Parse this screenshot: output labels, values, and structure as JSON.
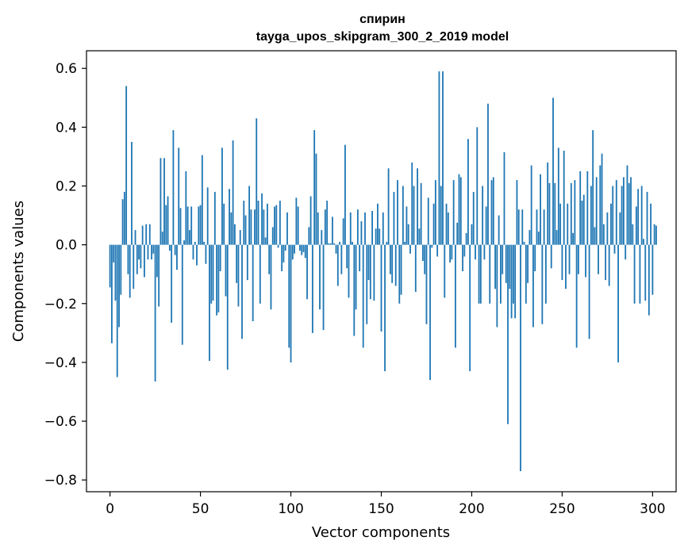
{
  "chart_data": {
    "type": "bar",
    "title": "спирин",
    "subtitle": "tayga_upos_skipgram_300_2_2019 model",
    "xlabel": "Vector components",
    "ylabel": "Components values",
    "xlim": [
      -13,
      313
    ],
    "ylim": [
      -0.84,
      0.66
    ],
    "xticks": [
      0,
      50,
      100,
      150,
      200,
      250,
      300
    ],
    "xtick_labels": [
      "0",
      "50",
      "100",
      "150",
      "200",
      "250",
      "300"
    ],
    "yticks": [
      0.6,
      0.4,
      0.2,
      0.0,
      -0.2,
      -0.4,
      -0.6,
      -0.8
    ],
    "ytick_labels": [
      "0.6",
      "0.4",
      "0.2",
      "0.0",
      "−0.2",
      "−0.4",
      "−0.6",
      "−0.8"
    ],
    "bar_color": "#1f77b4",
    "values": [
      -0.145,
      -0.335,
      -0.06,
      -0.19,
      -0.45,
      -0.28,
      -0.17,
      0.155,
      0.18,
      0.54,
      -0.1,
      -0.18,
      0.35,
      -0.15,
      0.05,
      -0.1,
      -0.05,
      -0.08,
      0.065,
      -0.11,
      0.07,
      -0.05,
      0.07,
      -0.05,
      -0.03,
      -0.465,
      -0.11,
      -0.21,
      0.295,
      0.045,
      0.295,
      0.135,
      0.165,
      -0.02,
      -0.265,
      0.39,
      -0.035,
      -0.085,
      0.33,
      0.125,
      -0.34,
      0.015,
      0.25,
      0.13,
      0.05,
      0.13,
      -0.05,
      0.01,
      -0.07,
      0.13,
      0.135,
      0.305,
      0.01,
      -0.065,
      0.195,
      -0.395,
      -0.2,
      -0.19,
      0.18,
      -0.24,
      -0.23,
      -0.09,
      0.33,
      0.14,
      -0.175,
      -0.425,
      0.19,
      0.11,
      0.355,
      0.07,
      -0.13,
      -0.21,
      0.05,
      -0.32,
      0.15,
      0.1,
      -0.12,
      0.2,
      0.12,
      -0.26,
      0.12,
      0.43,
      0.15,
      -0.2,
      0.175,
      0.12,
      0.025,
      0.14,
      -0.1,
      -0.22,
      0.06,
      0.13,
      0.135,
      -0.01,
      0.15,
      -0.09,
      -0.06,
      -0.02,
      0.11,
      -0.35,
      -0.4,
      -0.05,
      -0.03,
      0.16,
      0.13,
      -0.02,
      -0.035,
      -0.025,
      -0.045,
      -0.185,
      0.06,
      0.165,
      -0.3,
      0.39,
      0.31,
      0.11,
      -0.22,
      0.05,
      -0.29,
      0.12,
      0.15,
      0.005,
      0.005,
      0.095,
      0.005,
      -0.03,
      -0.14,
      0.01,
      -0.1,
      0.09,
      0.34,
      -0.08,
      -0.18,
      0.11,
      0.01,
      -0.31,
      -0.22,
      0.12,
      -0.09,
      0.08,
      -0.35,
      0.11,
      -0.27,
      -0.12,
      -0.185,
      0.115,
      -0.19,
      0.055,
      0.14,
      0.055,
      -0.295,
      0.11,
      -0.43,
      0.01,
      0.26,
      -0.1,
      -0.13,
      0.18,
      -0.14,
      0.22,
      -0.2,
      -0.17,
      0.2,
      0.01,
      0.13,
      0.07,
      -0.03,
      0.28,
      0.2,
      -0.16,
      0.26,
      0.055,
      0.21,
      -0.055,
      -0.1,
      -0.27,
      0.16,
      -0.46,
      -0.01,
      0.14,
      0.22,
      -0.04,
      0.59,
      0.2,
      0.59,
      -0.18,
      0.14,
      0.11,
      -0.06,
      -0.05,
      0.22,
      -0.35,
      0.075,
      0.24,
      0.23,
      -0.09,
      -0.04,
      0.04,
      0.36,
      -0.43,
      0.07,
      0.18,
      -0.05,
      0.4,
      -0.2,
      -0.2,
      0.2,
      -0.05,
      0.13,
      0.48,
      -0.2,
      0.22,
      0.23,
      -0.15,
      -0.28,
      0.1,
      -0.2,
      -0.1,
      0.315,
      -0.13,
      -0.61,
      -0.15,
      -0.25,
      -0.2,
      -0.25,
      0.22,
      0.12,
      -0.77,
      0.12,
      0.01,
      -0.2,
      -0.13,
      0.05,
      0.27,
      -0.28,
      -0.09,
      0.12,
      0.045,
      0.24,
      -0.27,
      0.12,
      -0.2,
      0.28,
      0.21,
      -0.08,
      0.5,
      0.21,
      0.05,
      0.33,
      0.14,
      -0.12,
      0.32,
      -0.15,
      0.14,
      -0.1,
      0.21,
      0.04,
      0.22,
      -0.35,
      -0.1,
      0.25,
      0.15,
      0.17,
      -0.11,
      0.25,
      -0.32,
      0.2,
      0.39,
      0.06,
      0.23,
      -0.1,
      0.27,
      0.31,
      0.07,
      -0.12,
      0.11,
      -0.14,
      0.14,
      0.2,
      -0.03,
      0.22,
      -0.4,
      0.11,
      0.2,
      0.23,
      -0.05,
      0.27,
      0.21,
      0.23,
      0.07,
      -0.2,
      0.13,
      0.19,
      -0.2,
      0.2,
      0.02,
      -0.19,
      0.18,
      -0.24,
      0.14,
      -0.17,
      0.07,
      0.065
    ]
  }
}
